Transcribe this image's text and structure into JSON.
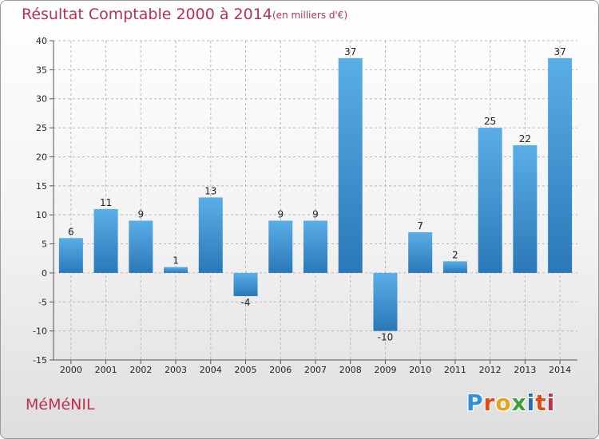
{
  "header": {
    "title": "Résultat Comptable 2000 à 2014",
    "subtitle": "(en milliers d'€)"
  },
  "commune": "MéMéNIL",
  "logo": {
    "letters": [
      {
        "char": "P",
        "color": "#2f8fd8"
      },
      {
        "char": "r",
        "color": "#e04a1a"
      },
      {
        "char": "o",
        "color": "#e2a41c"
      },
      {
        "char": "x",
        "color": "#3aa23a"
      },
      {
        "char": "i",
        "color": "#1f6fc0"
      },
      {
        "char": "t",
        "color": "#e04a1a"
      },
      {
        "char": "i",
        "color": "#c0304a"
      }
    ]
  },
  "chart_data": {
    "type": "bar",
    "title": "Résultat Comptable 2000 à 2014",
    "subtitle": "(en milliers d'€)",
    "categories": [
      "2000",
      "2001",
      "2002",
      "2003",
      "2004",
      "2005",
      "2006",
      "2007",
      "2008",
      "2009",
      "2010",
      "2011",
      "2012",
      "2013",
      "2014"
    ],
    "values": [
      6,
      11,
      9,
      1,
      13,
      -4,
      9,
      9,
      37,
      -10,
      7,
      2,
      25,
      22,
      37
    ],
    "ylim": [
      -15,
      40
    ],
    "yticks": [
      -15,
      -10,
      -5,
      0,
      5,
      10,
      15,
      20,
      25,
      30,
      35,
      40
    ],
    "xlabel": "",
    "ylabel": "",
    "grid": true,
    "colors": {
      "bar_light": "#5aaee6",
      "bar_dark": "#2a78b8",
      "grid": "#b9b9b9",
      "axis": "#555555"
    }
  }
}
